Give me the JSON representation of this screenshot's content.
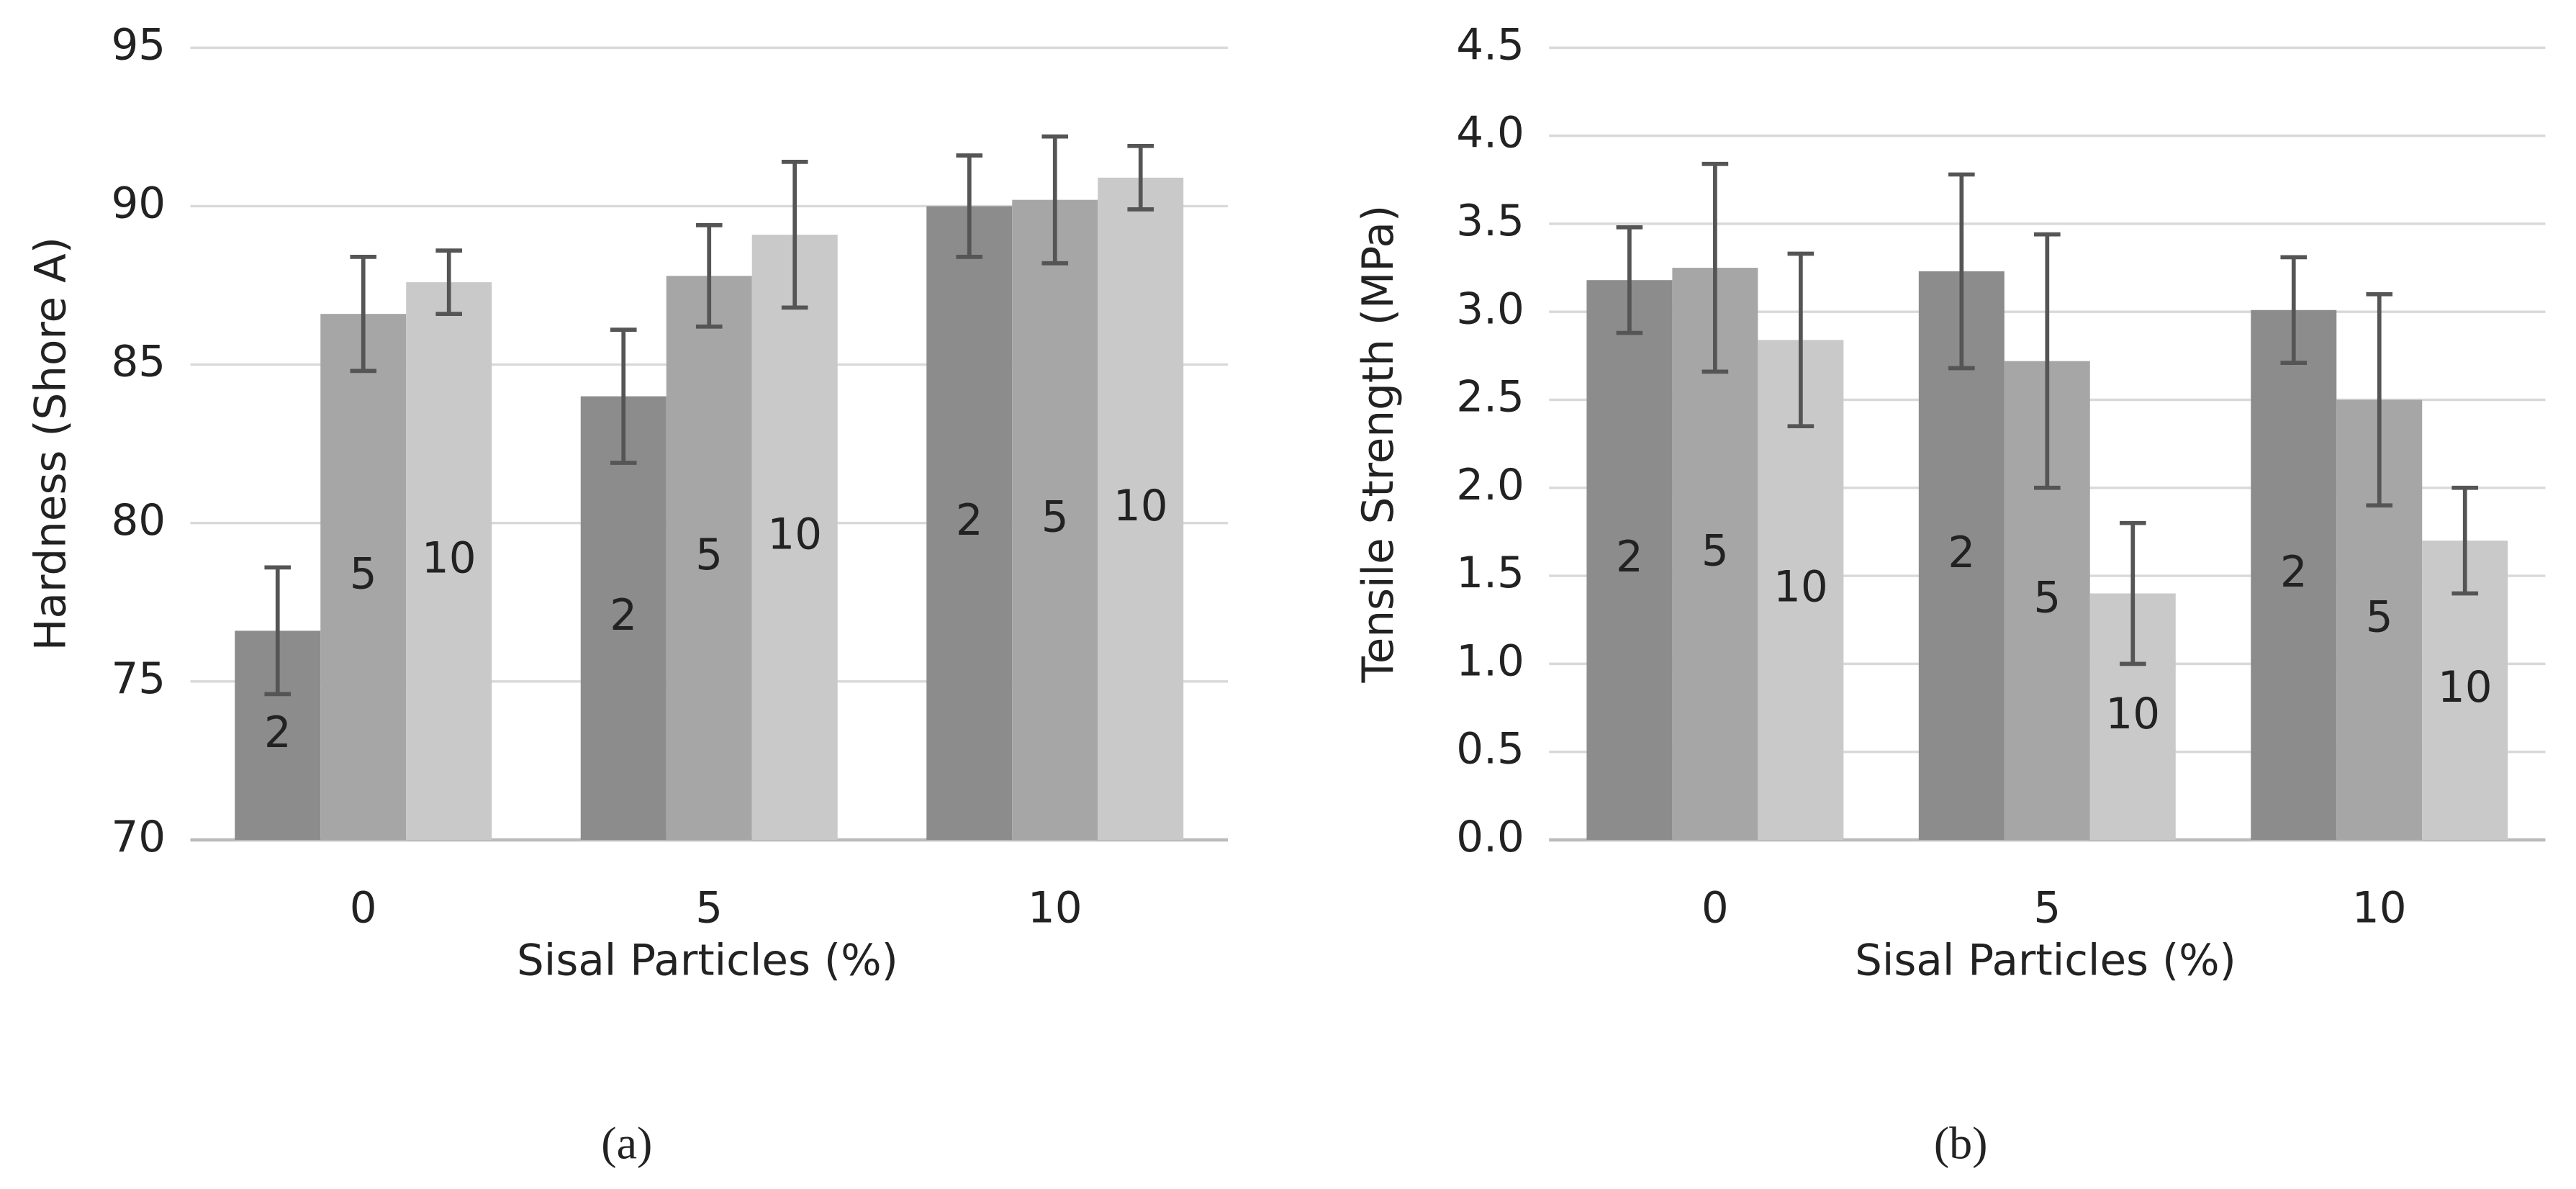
{
  "chart_data": [
    {
      "type": "bar",
      "label": "(a)",
      "y_label": "Hardness (Shore A)",
      "x_label": "Sisal Particles (%)",
      "categories": [
        "0",
        "5",
        "10"
      ],
      "series": [
        {
          "name": "2",
          "color": "#8c8c8c",
          "values": [
            76.6,
            84.0,
            90.0
          ],
          "errors": [
            2.0,
            2.1,
            1.6
          ]
        },
        {
          "name": "5",
          "color": "#a6a6a6",
          "values": [
            86.6,
            87.8,
            90.2
          ],
          "errors": [
            1.8,
            1.6,
            2.0
          ]
        },
        {
          "name": "10",
          "color": "#c9c9c9",
          "values": [
            87.6,
            89.1,
            90.9
          ],
          "errors": [
            1.0,
            2.3,
            1.0
          ]
        }
      ],
      "ylim": [
        70,
        95
      ],
      "yticks": [
        70,
        75,
        80,
        85,
        90,
        95
      ],
      "grid": true
    },
    {
      "type": "bar",
      "label": "(b)",
      "y_label": "Tensile Strength (MPa)",
      "x_label": "Sisal Particles (%)",
      "categories": [
        "0",
        "5",
        "10"
      ],
      "series": [
        {
          "name": "2",
          "color": "#8c8c8c",
          "values": [
            3.18,
            3.23,
            3.01
          ],
          "errors": [
            0.3,
            0.55,
            0.3
          ]
        },
        {
          "name": "5",
          "color": "#a6a6a6",
          "values": [
            3.25,
            2.72,
            2.5
          ],
          "errors": [
            0.59,
            0.72,
            0.6
          ]
        },
        {
          "name": "10",
          "color": "#c9c9c9",
          "values": [
            2.84,
            1.4,
            1.7
          ],
          "errors": [
            0.49,
            0.4,
            0.3
          ]
        }
      ],
      "ylim": [
        0,
        4.5
      ],
      "yticks": [
        {
          "value": 0,
          "label": "0.0"
        },
        0.5,
        {
          "value": 1,
          "label": "1.0"
        },
        1.5,
        {
          "value": 2,
          "label": "2.0"
        },
        2.5,
        {
          "value": 3,
          "label": "3.0"
        },
        3.5,
        {
          "value": 4,
          "label": "4.0"
        },
        4.5
      ],
      "grid": true
    }
  ]
}
